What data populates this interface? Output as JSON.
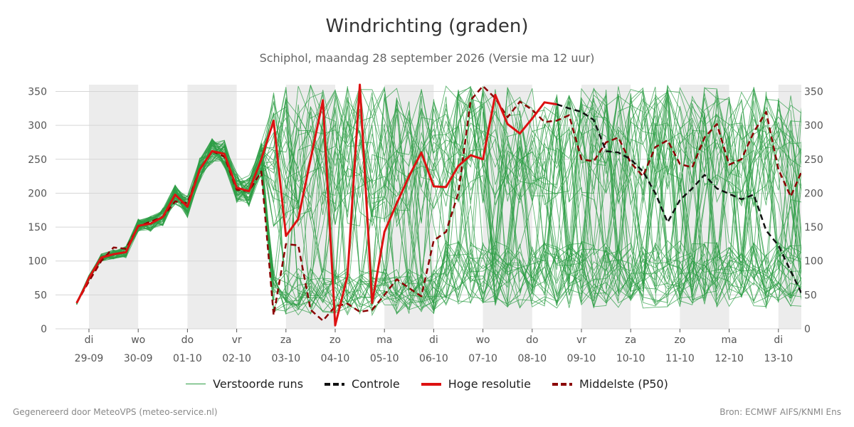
{
  "chart_data": {
    "type": "line",
    "title": "Windrichting (graden)",
    "subtitle": "Schiphol, maandag 28 september 2026 (Versie ma 12 uur)",
    "ylim": [
      0,
      360
    ],
    "yticks": [
      0,
      50,
      100,
      150,
      200,
      250,
      300,
      350
    ],
    "x_days": [
      {
        "day": "di",
        "date": "29-09"
      },
      {
        "day": "wo",
        "date": "30-09"
      },
      {
        "day": "do",
        "date": "01-10"
      },
      {
        "day": "vr",
        "date": "02-10"
      },
      {
        "day": "za",
        "date": "03-10"
      },
      {
        "day": "zo",
        "date": "04-10"
      },
      {
        "day": "ma",
        "date": "05-10"
      },
      {
        "day": "di",
        "date": "06-10"
      },
      {
        "day": "wo",
        "date": "07-10"
      },
      {
        "day": "do",
        "date": "08-10"
      },
      {
        "day": "vr",
        "date": "09-10"
      },
      {
        "day": "za",
        "date": "10-10"
      },
      {
        "day": "zo",
        "date": "11-10"
      },
      {
        "day": "ma",
        "date": "12-10"
      },
      {
        "day": "di",
        "date": "13-10"
      }
    ],
    "shaded_day_index_pairs": [
      [
        0,
        1
      ],
      [
        2,
        3
      ],
      [
        4,
        5
      ],
      [
        6,
        7
      ],
      [
        8,
        9
      ],
      [
        10,
        11
      ],
      [
        12,
        13
      ],
      [
        14,
        14.5
      ]
    ],
    "series": [
      {
        "name": "Hoge resolutie",
        "color": "#dd1111",
        "style": "solid",
        "points": [
          [
            -0.25,
            38
          ],
          [
            -0.08,
            62
          ],
          [
            0,
            75
          ],
          [
            0.25,
            105
          ],
          [
            0.5,
            110
          ],
          [
            0.75,
            113
          ],
          [
            1,
            152
          ],
          [
            1.25,
            155
          ],
          [
            1.5,
            165
          ],
          [
            1.75,
            198
          ],
          [
            2,
            180
          ],
          [
            2.25,
            235
          ],
          [
            2.5,
            262
          ],
          [
            2.75,
            258
          ],
          [
            3,
            208
          ],
          [
            3.25,
            203
          ],
          [
            3.5,
            250
          ],
          [
            3.75,
            307
          ],
          [
            4,
            137
          ],
          [
            4.25,
            162
          ],
          [
            4.5,
            250
          ],
          [
            4.75,
            337
          ],
          [
            5,
            5
          ],
          [
            5.25,
            78
          ],
          [
            5.5,
            360
          ],
          [
            5.75,
            38
          ],
          [
            6,
            143
          ],
          [
            6.25,
            185
          ],
          [
            6.5,
            225
          ],
          [
            6.75,
            260
          ],
          [
            7,
            210
          ],
          [
            7.25,
            209
          ],
          [
            7.5,
            240
          ],
          [
            7.75,
            256
          ],
          [
            8,
            250
          ],
          [
            8.25,
            345
          ],
          [
            8.5,
            302
          ],
          [
            8.75,
            288
          ],
          [
            9,
            310
          ],
          [
            9.25,
            334
          ],
          [
            9.5,
            331
          ]
        ]
      },
      {
        "name": "Controle",
        "color": "#111111",
        "style": "dashed",
        "points": [
          [
            9.5,
            331
          ],
          [
            9.75,
            325
          ],
          [
            10,
            320
          ],
          [
            10.25,
            308
          ],
          [
            10.5,
            262
          ],
          [
            10.75,
            260
          ],
          [
            11,
            250
          ],
          [
            11.25,
            232
          ],
          [
            11.5,
            200
          ],
          [
            11.75,
            157
          ],
          [
            12,
            190
          ],
          [
            12.25,
            207
          ],
          [
            12.5,
            227
          ],
          [
            12.75,
            207
          ],
          [
            13,
            199
          ],
          [
            13.25,
            191
          ],
          [
            13.5,
            198
          ],
          [
            13.75,
            145
          ],
          [
            14,
            123
          ],
          [
            14.25,
            85
          ],
          [
            14.5,
            48
          ]
        ]
      },
      {
        "name": "Middelste (P50)",
        "color": "#8b0000",
        "style": "dashed",
        "points": [
          [
            -0.25,
            38
          ],
          [
            0,
            70
          ],
          [
            0.25,
            100
          ],
          [
            0.5,
            120
          ],
          [
            0.75,
            118
          ],
          [
            1,
            151
          ],
          [
            1.25,
            158
          ],
          [
            1.5,
            165
          ],
          [
            1.75,
            188
          ],
          [
            2,
            185
          ],
          [
            2.25,
            235
          ],
          [
            2.5,
            262
          ],
          [
            2.75,
            254
          ],
          [
            3,
            205
          ],
          [
            3.25,
            203
          ],
          [
            3.5,
            232
          ],
          [
            3.75,
            20
          ],
          [
            4,
            125
          ],
          [
            4.25,
            123
          ],
          [
            4.5,
            28
          ],
          [
            4.75,
            12
          ],
          [
            5,
            33
          ],
          [
            5.25,
            37
          ],
          [
            5.5,
            25
          ],
          [
            5.75,
            28
          ],
          [
            6,
            50
          ],
          [
            6.25,
            73
          ],
          [
            6.5,
            60
          ],
          [
            6.75,
            48
          ],
          [
            7,
            130
          ],
          [
            7.25,
            143
          ],
          [
            7.5,
            200
          ],
          [
            7.75,
            337
          ],
          [
            8,
            358
          ],
          [
            8.25,
            340
          ],
          [
            8.5,
            312
          ],
          [
            8.75,
            335
          ],
          [
            9,
            323
          ],
          [
            9.25,
            305
          ],
          [
            9.5,
            307
          ],
          [
            9.75,
            315
          ],
          [
            10,
            250
          ],
          [
            10.25,
            247
          ],
          [
            10.5,
            275
          ],
          [
            10.75,
            282
          ],
          [
            11,
            245
          ],
          [
            11.25,
            225
          ],
          [
            11.5,
            268
          ],
          [
            11.75,
            278
          ],
          [
            12,
            243
          ],
          [
            12.25,
            238
          ],
          [
            12.5,
            282
          ],
          [
            12.75,
            302
          ],
          [
            13,
            242
          ],
          [
            13.25,
            250
          ],
          [
            13.5,
            290
          ],
          [
            13.75,
            320
          ],
          [
            14,
            235
          ],
          [
            14.25,
            195
          ],
          [
            14.5,
            237
          ]
        ]
      }
    ],
    "ensemble": {
      "name": "Verstoorde runs",
      "color": "#2e9e45"
    },
    "legend": [
      "Verstoorde runs",
      "Controle",
      "Hoge resolutie",
      "Middelste (P50)"
    ]
  },
  "footer": {
    "left": "Gegenereerd door MeteoVPS (meteo-service.nl)",
    "right": "Bron: ECMWF AIFS/KNMI Ens"
  }
}
